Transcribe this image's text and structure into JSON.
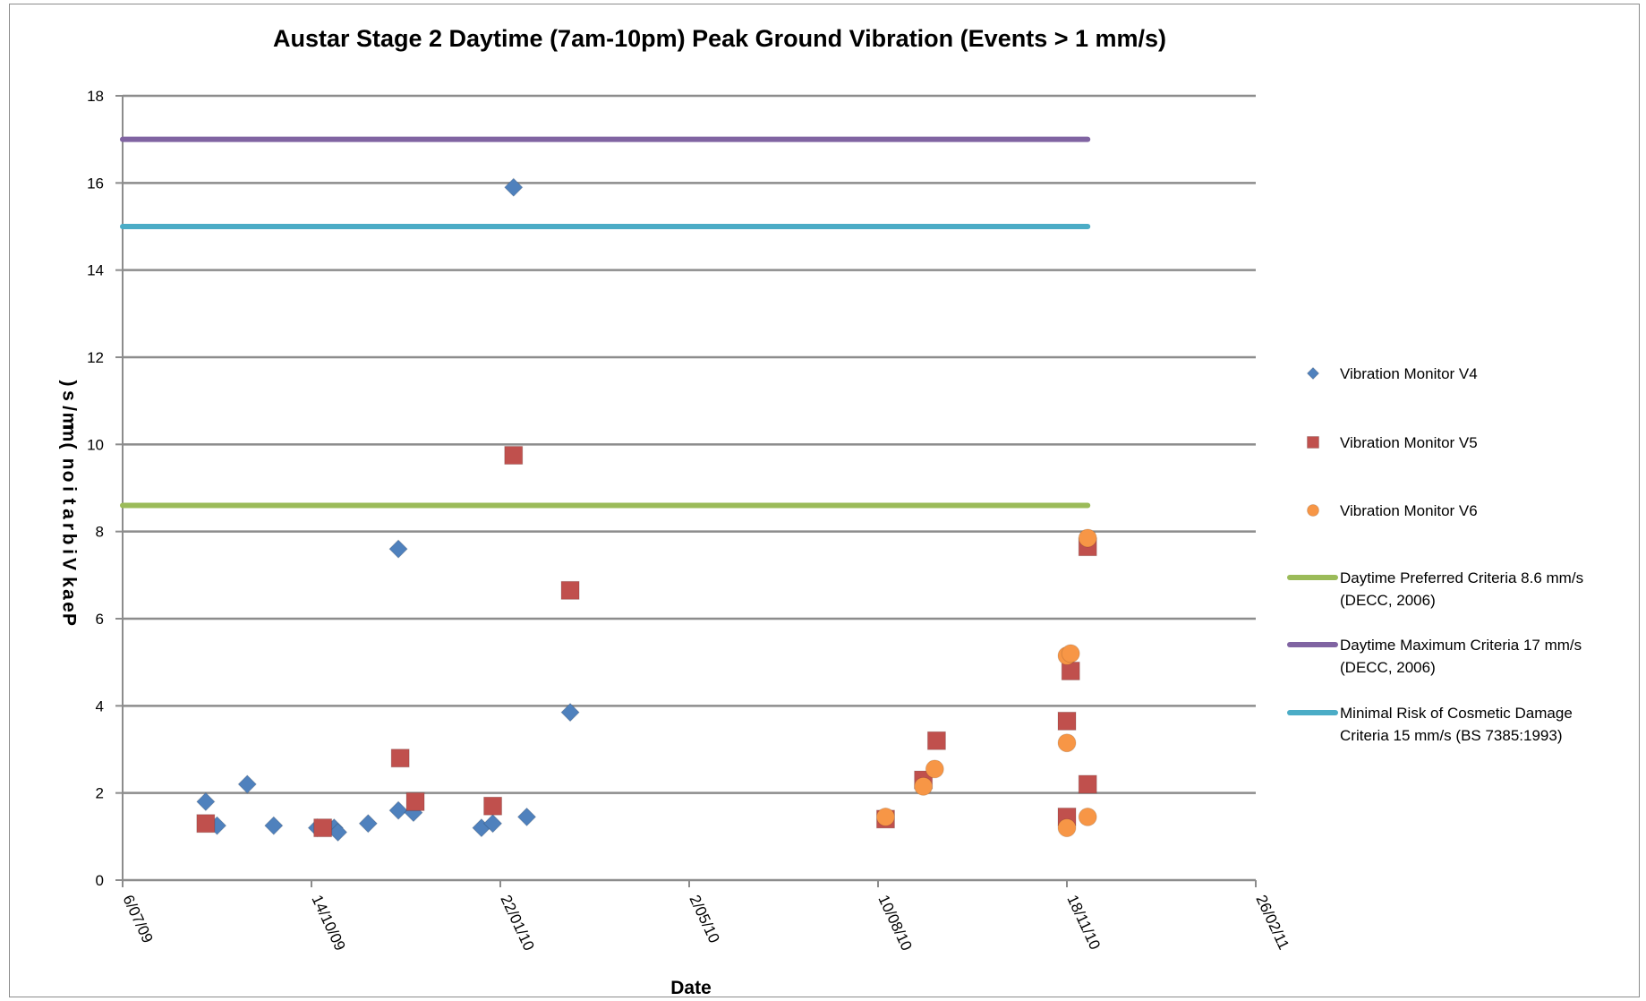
{
  "chart_data": {
    "type": "scatter",
    "title": "Austar Stage 2 Daytime (7am-10pm) Peak Ground Vibration (Events > 1 mm/s)",
    "xlabel": "Date",
    "ylabel": "Peak Vibration (mm/s)",
    "ylim": [
      0,
      18
    ],
    "yticks": [
      0,
      2,
      4,
      6,
      8,
      10,
      12,
      14,
      16,
      18
    ],
    "xlim": [
      "2009-07-06",
      "2011-02-26"
    ],
    "xticks": [
      {
        "date": "2009-07-06",
        "label": "6/07/09"
      },
      {
        "date": "2009-10-14",
        "label": "14/10/09"
      },
      {
        "date": "2010-01-22",
        "label": "22/01/10"
      },
      {
        "date": "2010-05-02",
        "label": "2/05/10"
      },
      {
        "date": "2010-08-10",
        "label": "10/08/10"
      },
      {
        "date": "2010-11-18",
        "label": "18/11/10"
      },
      {
        "date": "2011-02-26",
        "label": "26/02/11"
      }
    ],
    "grid": true,
    "legend_position": "right",
    "series": [
      {
        "name": "Vibration Monitor V4",
        "kind": "scatter",
        "marker": "diamond",
        "color": "#4f81bd",
        "points": [
          {
            "x": "2009-08-19",
            "y": 1.8
          },
          {
            "x": "2009-08-25",
            "y": 1.25
          },
          {
            "x": "2009-09-10",
            "y": 2.2
          },
          {
            "x": "2009-09-24",
            "y": 1.25
          },
          {
            "x": "2009-10-17",
            "y": 1.2
          },
          {
            "x": "2009-10-26",
            "y": 1.2
          },
          {
            "x": "2009-10-28",
            "y": 1.1
          },
          {
            "x": "2009-11-13",
            "y": 1.3
          },
          {
            "x": "2009-11-29",
            "y": 7.6
          },
          {
            "x": "2009-11-29",
            "y": 1.6
          },
          {
            "x": "2009-12-07",
            "y": 1.55
          },
          {
            "x": "2010-01-12",
            "y": 1.2
          },
          {
            "x": "2010-01-18",
            "y": 1.3
          },
          {
            "x": "2010-01-29",
            "y": 15.9
          },
          {
            "x": "2010-02-05",
            "y": 1.45
          },
          {
            "x": "2010-02-28",
            "y": 3.85
          }
        ]
      },
      {
        "name": "Vibration Monitor V5",
        "kind": "scatter",
        "marker": "square",
        "color": "#c0504d",
        "points": [
          {
            "x": "2009-08-19",
            "y": 1.3
          },
          {
            "x": "2009-10-20",
            "y": 1.2
          },
          {
            "x": "2009-11-30",
            "y": 2.8
          },
          {
            "x": "2009-12-08",
            "y": 1.8
          },
          {
            "x": "2010-01-18",
            "y": 1.7
          },
          {
            "x": "2010-01-29",
            "y": 9.75
          },
          {
            "x": "2010-02-28",
            "y": 6.65
          },
          {
            "x": "2010-08-14",
            "y": 1.4
          },
          {
            "x": "2010-09-03",
            "y": 2.3
          },
          {
            "x": "2010-09-10",
            "y": 3.2
          },
          {
            "x": "2010-11-18",
            "y": 3.65
          },
          {
            "x": "2010-11-18",
            "y": 1.45
          },
          {
            "x": "2010-11-20",
            "y": 4.8
          },
          {
            "x": "2010-11-29",
            "y": 7.65
          },
          {
            "x": "2010-11-29",
            "y": 2.2
          }
        ]
      },
      {
        "name": "Vibration Monitor V6",
        "kind": "scatter",
        "marker": "circle",
        "color": "#f79646",
        "points": [
          {
            "x": "2010-08-14",
            "y": 1.45
          },
          {
            "x": "2010-09-03",
            "y": 2.15
          },
          {
            "x": "2010-09-09",
            "y": 2.55
          },
          {
            "x": "2010-11-18",
            "y": 5.15
          },
          {
            "x": "2010-11-20",
            "y": 5.2
          },
          {
            "x": "2010-11-18",
            "y": 3.15
          },
          {
            "x": "2010-11-18",
            "y": 1.2
          },
          {
            "x": "2010-11-29",
            "y": 7.85
          },
          {
            "x": "2010-11-29",
            "y": 1.45
          }
        ]
      },
      {
        "name": "Daytime Preferred Criteria 8.6 mm/s (DECC, 2006)",
        "kind": "line",
        "color": "#9bbb59",
        "x": [
          "2009-07-06",
          "2010-11-29"
        ],
        "y": [
          8.6,
          8.6
        ]
      },
      {
        "name": "Daytime Maximum Criteria 17 mm/s (DECC, 2006)",
        "kind": "line",
        "color": "#8064a2",
        "x": [
          "2009-07-06",
          "2010-11-29"
        ],
        "y": [
          17,
          17
        ]
      },
      {
        "name": "Minimal Risk of Cosmetic Damage Criteria 15 mm/s (BS 7385:1993)",
        "kind": "line",
        "color": "#4bacc6",
        "x": [
          "2009-07-06",
          "2010-11-29"
        ],
        "y": [
          15,
          15
        ]
      }
    ],
    "legend": [
      {
        "lines": [
          "Vibration Monitor V4"
        ],
        "kind": "diamond",
        "color": "#4f81bd"
      },
      {
        "lines": [
          "Vibration Monitor V5"
        ],
        "kind": "square",
        "color": "#c0504d"
      },
      {
        "lines": [
          "Vibration Monitor V6"
        ],
        "kind": "circle",
        "color": "#f79646"
      },
      {
        "lines": [
          "Daytime Preferred Criteria 8.6 mm/s",
          "(DECC, 2006)"
        ],
        "kind": "line",
        "color": "#9bbb59"
      },
      {
        "lines": [
          "Daytime Maximum Criteria 17 mm/s",
          "(DECC, 2006)"
        ],
        "kind": "line",
        "color": "#8064a2"
      },
      {
        "lines": [
          "Minimal Risk of Cosmetic Damage",
          "Criteria 15 mm/s (BS 7385:1993)"
        ],
        "kind": "line",
        "color": "#4bacc6"
      }
    ]
  }
}
